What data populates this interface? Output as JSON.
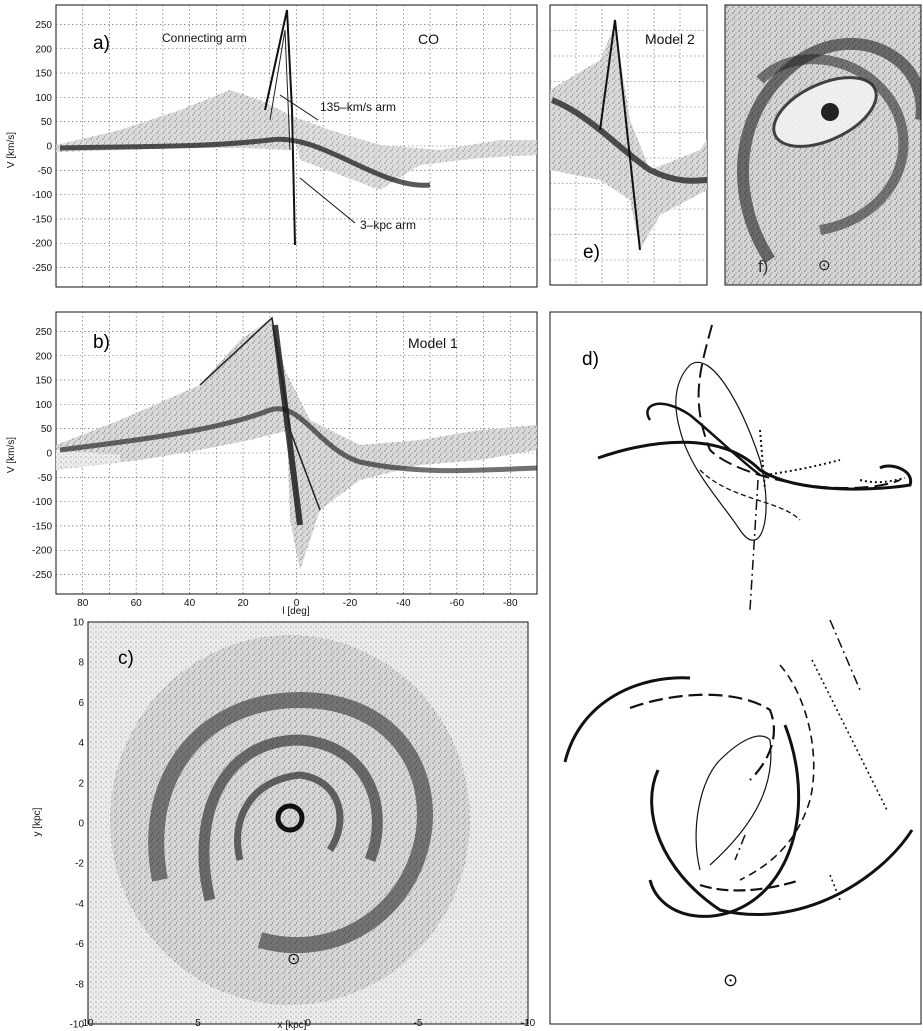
{
  "figure": {
    "panels": {
      "a": {
        "letter": "a)",
        "title_left": "Connecting arm",
        "title_right": "CO",
        "annotations": [
          "135–km/s arm",
          "3–kpc arm"
        ],
        "ylabel": "V  [km/s]",
        "yticks": [
          "250",
          "200",
          "150",
          "100",
          "50",
          "0",
          "-50",
          "-100",
          "-150",
          "-200",
          "-250"
        ]
      },
      "b": {
        "letter": "b)",
        "title": "Model 1",
        "ylabel": "V  [km/s]",
        "xlabel": "l [deg]",
        "yticks": [
          "250",
          "200",
          "150",
          "100",
          "50",
          "0",
          "-50",
          "-100",
          "-150",
          "-200",
          "-250"
        ],
        "xticks": [
          "80",
          "60",
          "40",
          "20",
          "0",
          "-20",
          "-40",
          "-60",
          "-80"
        ]
      },
      "c": {
        "letter": "c)",
        "xlabel": "x [kpc]",
        "ylabel": "y [kpc]",
        "yticks": [
          "10",
          "8",
          "6",
          "4",
          "2",
          "0",
          "-2",
          "-4",
          "-6",
          "-8",
          "-10"
        ],
        "xticks": [
          "10",
          "5",
          "0",
          "-5",
          "-10"
        ],
        "sun_symbol": "⊙"
      },
      "d": {
        "letter": "d)",
        "sun_symbol": "⊙"
      },
      "e": {
        "letter": "e)",
        "title": "Model 2"
      },
      "f": {
        "letter": "f)",
        "sun_symbol": "⊙"
      }
    },
    "colors": {
      "ink": "#111111",
      "grid": "#555555",
      "background": "#ffffff"
    }
  },
  "chart_data": [
    {
      "type": "scatter",
      "panel": "a",
      "title": "CO",
      "xlabel": "",
      "ylabel": "V [km/s]",
      "xlim": [
        90,
        -90
      ],
      "ylim": [
        -290,
        290
      ],
      "grid": true,
      "series": [
        {
          "name": "Connecting arm",
          "x": [
            10,
            8,
            6,
            4
          ],
          "y": [
            280,
            220,
            150,
            80
          ]
        },
        {
          "name": "135–km/s arm",
          "x": [
            12,
            8,
            4,
            0,
            -4
          ],
          "y": [
            135,
            125,
            115,
            100,
            80
          ]
        },
        {
          "name": "3–kpc arm",
          "x": [
            20,
            10,
            0,
            -10,
            -20
          ],
          "y": [
            -20,
            -35,
            -55,
            -75,
            -95
          ]
        }
      ]
    },
    {
      "type": "scatter",
      "panel": "b",
      "title": "Model 1",
      "xlabel": "l [deg]",
      "ylabel": "V [km/s]",
      "xlim": [
        90,
        -90
      ],
      "ylim": [
        -290,
        290
      ],
      "grid": true
    },
    {
      "type": "scatter",
      "panel": "c",
      "xlabel": "x [kpc]",
      "ylabel": "y [kpc]",
      "xlim": [
        10,
        -10
      ],
      "ylim": [
        -10,
        10
      ],
      "grid": false
    }
  ]
}
